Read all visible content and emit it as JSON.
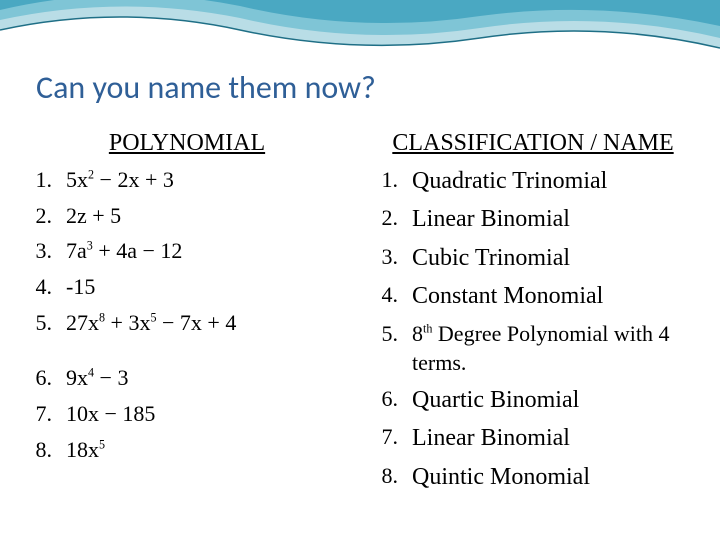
{
  "title_text": "Can you name them now?",
  "title_color": "#2f5f97",
  "left_header": "POLYNOMIAL",
  "right_header": "CLASSIFICATION / NAME",
  "text_color": "#000000",
  "background_color": "#ffffff",
  "wave_colors": {
    "outer": "#b9dde6",
    "mid": "#7fc5d6",
    "inner": "#4aa8c2",
    "stroke": "#1f6f86"
  },
  "polynomials": [
    {
      "n": "1.",
      "expr_html": "5x<sup>2</sup> − 2x + 3"
    },
    {
      "n": "2.",
      "expr_html": "2z + 5"
    },
    {
      "n": "3.",
      "expr_html": "7a<sup>3</sup> + 4a − 12"
    },
    {
      "n": "4.",
      "expr_html": "-15"
    },
    {
      "n": "5.",
      "expr_html": "27x<sup>8</sup> + 3x<sup>5</sup> − 7x + 4"
    }
  ],
  "polynomials2": [
    {
      "n": "6.",
      "expr_html": "9x<sup>4</sup> − 3"
    },
    {
      "n": "7.",
      "expr_html": "10x − 185"
    },
    {
      "n": "8.",
      "expr_html": "18x<sup>5</sup>"
    }
  ],
  "names": [
    {
      "n": "1.",
      "name": "Quadratic Trinomial"
    },
    {
      "n": "2.",
      "name": "Linear Binomial"
    },
    {
      "n": "3.",
      "name": "Cubic Trinomial"
    },
    {
      "n": "4.",
      "name": "Constant Monomial"
    },
    {
      "n": "5.",
      "name_html": "8<sup>th</sup> Degree Polynomial with 4 terms.",
      "small": true
    },
    {
      "n": "6.",
      "name": "Quartic Binomial"
    },
    {
      "n": "7.",
      "name": "Linear Binomial"
    },
    {
      "n": "8.",
      "name": "Quintic Monomial"
    }
  ]
}
